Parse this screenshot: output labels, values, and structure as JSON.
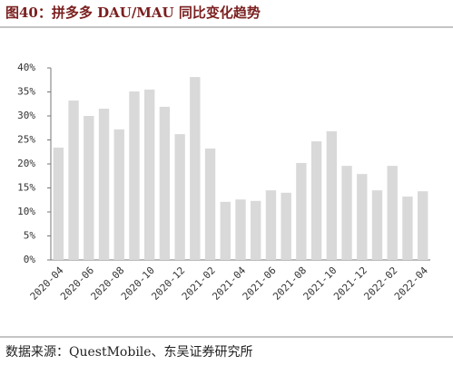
{
  "chart_data": {
    "type": "bar",
    "title": "图40：拼多多 DAU/MAU 同比变化趋势",
    "source": "数据来源：QuestMobile、东吴证券研究所",
    "categories": [
      "2020-04",
      null,
      "2020-06",
      null,
      "2020-08",
      null,
      "2020-10",
      null,
      "2020-12",
      null,
      "2021-02",
      null,
      "2021-04",
      null,
      "2021-06",
      null,
      "2021-08",
      null,
      "2021-10",
      null,
      "2021-12",
      null,
      "2022-02",
      null,
      "2022-04"
    ],
    "values": [
      23.4,
      33.2,
      30.0,
      31.5,
      27.2,
      35.1,
      35.5,
      31.9,
      26.2,
      38.1,
      23.2,
      12.1,
      12.6,
      12.3,
      14.5,
      14.0,
      20.2,
      24.7,
      26.8,
      19.6,
      17.9,
      14.5,
      19.6,
      13.2,
      14.3
    ],
    "color": "#d9d9d9",
    "ylim": [
      0,
      40
    ],
    "yticks": [
      {
        "value": 0,
        "label": "0%"
      },
      {
        "value": 5,
        "label": "5%"
      },
      {
        "value": 10,
        "label": "10%"
      },
      {
        "value": 15,
        "label": "15%"
      },
      {
        "value": 20,
        "label": "20%"
      },
      {
        "value": 25,
        "label": "25%"
      },
      {
        "value": 30,
        "label": "30%"
      },
      {
        "value": 35,
        "label": "35%"
      },
      {
        "value": 40,
        "label": "40%"
      }
    ],
    "grid": false
  }
}
